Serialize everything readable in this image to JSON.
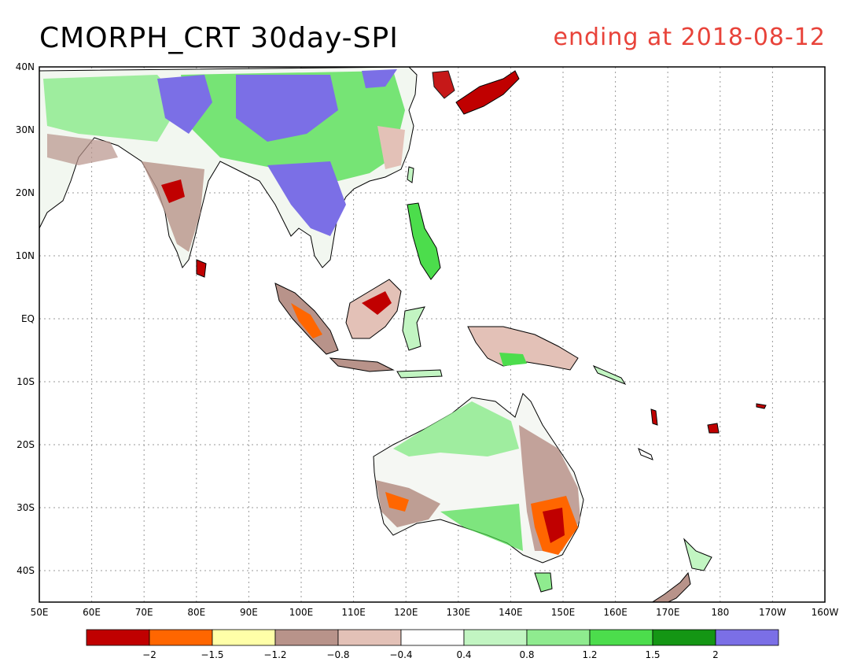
{
  "title": "CMORPH_CRT 30day-SPI",
  "subtitle": "ending at 2018-08-12",
  "map": {
    "lon_range": [
      50,
      200
    ],
    "lat_range": [
      -45,
      40
    ],
    "lat_ticks": [
      "40N",
      "30N",
      "20N",
      "10N",
      "EQ",
      "10S",
      "20S",
      "30S",
      "40S"
    ],
    "lat_values": [
      40,
      30,
      20,
      10,
      0,
      -10,
      -20,
      -30,
      -40
    ],
    "lon_ticks": [
      "50E",
      "60E",
      "70E",
      "80E",
      "90E",
      "100E",
      "110E",
      "120E",
      "130E",
      "140E",
      "150E",
      "160E",
      "170E",
      "180",
      "170W",
      "160W"
    ],
    "lon_values": [
      50,
      60,
      70,
      80,
      90,
      100,
      110,
      120,
      130,
      140,
      150,
      160,
      170,
      180,
      190,
      200
    ],
    "grid": true
  },
  "legend": {
    "colors": [
      "#c00000",
      "#ff6600",
      "#ffffa8",
      "#b8938a",
      "#e3c1b7",
      "#ffffff",
      "#c2f5c2",
      "#8feb8f",
      "#4cdd4c",
      "#149614",
      "#7b6fe6"
    ],
    "labels": [
      "−2",
      "−1.5",
      "−1.2",
      "−0.8",
      "−0.4",
      "0.4",
      "0.8",
      "1.2",
      "1.5",
      "2"
    ]
  }
}
